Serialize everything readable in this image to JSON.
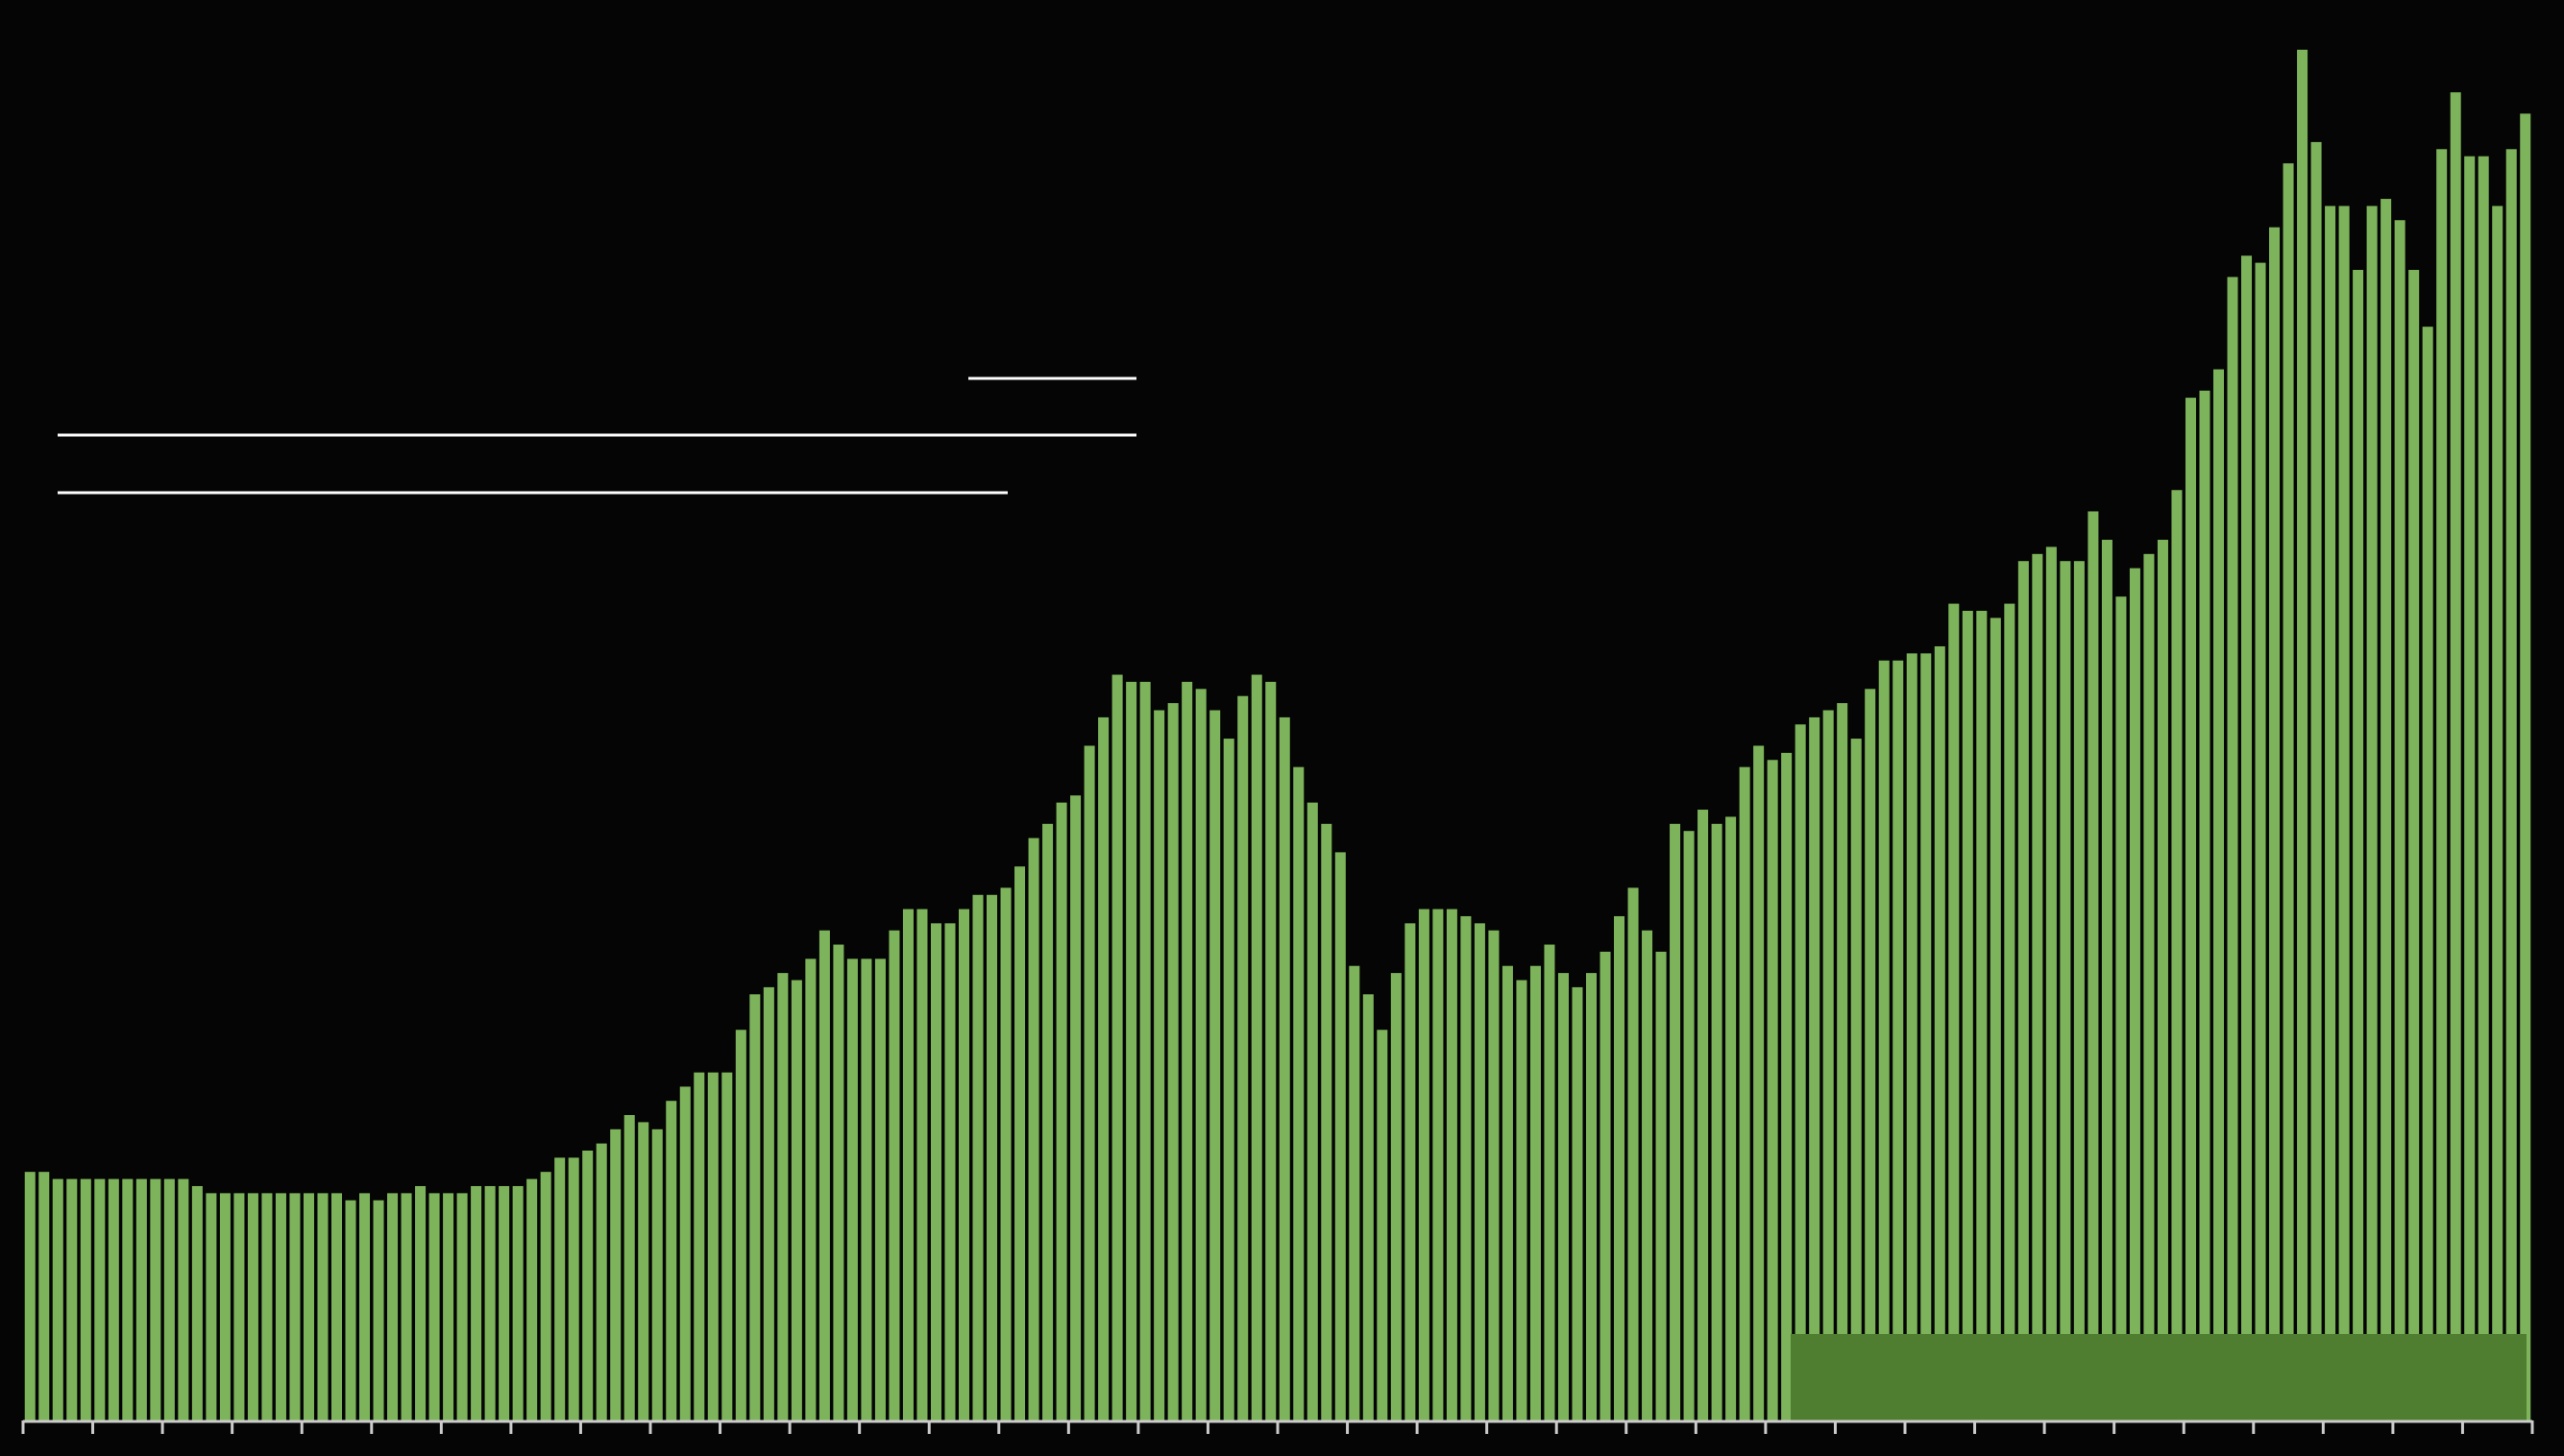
{
  "chart_data": {
    "type": "bar",
    "color": "#7db35a",
    "ylim": [
      0,
      100
    ],
    "values": [
      17.5,
      17.5,
      17,
      17,
      17,
      17,
      17,
      17,
      17,
      17,
      17,
      17,
      16.5,
      16,
      16,
      16,
      16,
      16,
      16,
      16,
      16,
      16,
      16,
      15.5,
      16,
      15.5,
      16,
      16,
      16.5,
      16,
      16,
      16,
      16.5,
      16.5,
      16.5,
      16.5,
      17,
      17.5,
      18.5,
      18.5,
      19,
      19.5,
      20.5,
      21.5,
      21,
      20.5,
      22.5,
      23.5,
      24.5,
      24.5,
      24.5,
      27.5,
      30,
      30.5,
      31.5,
      31,
      32.5,
      34.5,
      33.5,
      32.5,
      32.5,
      32.5,
      34.5,
      36,
      36,
      35,
      35,
      36,
      37,
      37,
      37.5,
      39,
      41,
      42,
      43.5,
      44,
      47.5,
      49.5,
      52.5,
      52,
      52,
      50,
      50.5,
      52,
      51.5,
      50,
      48,
      51,
      52.5,
      52,
      49.5,
      46,
      43.5,
      42,
      40,
      32,
      30,
      27.5,
      31.5,
      35,
      36,
      36,
      36,
      35.5,
      35,
      34.5,
      32,
      31,
      32,
      33.5,
      31.5,
      30.5,
      31.5,
      33,
      35.5,
      37.5,
      34.5,
      33,
      42,
      41.5,
      43,
      42,
      42.5,
      46,
      47.5,
      46.5,
      47,
      49,
      49.5,
      50,
      50.5,
      48,
      51.5,
      53.5,
      53.5,
      54,
      54,
      54.5,
      57.5,
      57,
      57,
      56.5,
      57.5,
      60.5,
      61,
      61.5,
      60.5,
      60.5,
      64,
      62,
      58,
      60,
      61,
      62,
      65.5,
      72,
      72.5,
      74,
      80.5,
      82,
      81.5,
      84,
      88.5,
      96.5,
      90,
      85.5,
      85.5,
      81,
      85.5,
      86,
      84.5,
      81,
      77,
      89.5,
      93.5,
      89,
      89,
      85.5,
      89.5,
      92
    ]
  }
}
